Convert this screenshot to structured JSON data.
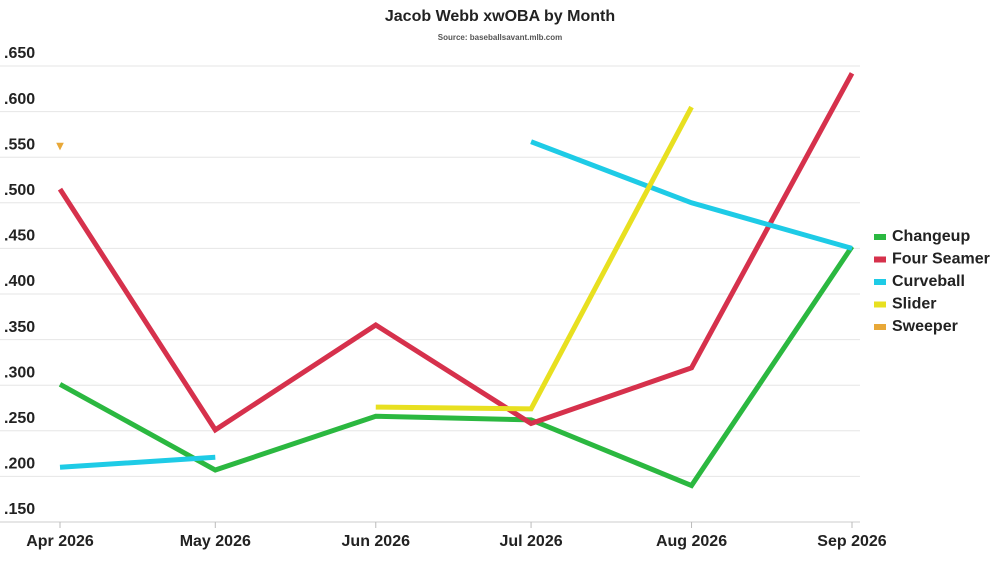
{
  "chart_data": {
    "type": "line",
    "title": "Jacob Webb xwOBA by Month",
    "subtitle": "Source: baseballsavant.mlb.com",
    "x": [
      "Apr 2026",
      "May 2026",
      "Jun 2026",
      "Jul 2026",
      "Aug 2026",
      "Sep 2026"
    ],
    "series": [
      {
        "name": "Changeup",
        "color": "#2bb840",
        "values": [
          0.301,
          0.207,
          0.266,
          0.262,
          0.19,
          0.452
        ]
      },
      {
        "name": "Four Seamer",
        "color": "#d6314c",
        "values": [
          0.515,
          0.251,
          0.366,
          0.258,
          0.319,
          0.642
        ]
      },
      {
        "name": "Curveball",
        "color": "#1ecbe6",
        "values": [
          0.21,
          0.221,
          null,
          0.567,
          0.5,
          0.45
        ]
      },
      {
        "name": "Slider",
        "color": "#e8e020",
        "values": [
          null,
          null,
          0.276,
          0.274,
          0.605,
          null
        ]
      },
      {
        "name": "Sweeper",
        "color": "#e8a838",
        "values": [
          0.562,
          null,
          null,
          null,
          null,
          null
        ]
      }
    ],
    "ylim": [
      0.15,
      0.65
    ],
    "yticks": [
      {
        "value": 0.15,
        "label": ".150"
      },
      {
        "value": 0.2,
        "label": ".200"
      },
      {
        "value": 0.25,
        "label": ".250"
      },
      {
        "value": 0.3,
        "label": ".300"
      },
      {
        "value": 0.35,
        "label": ".350"
      },
      {
        "value": 0.4,
        "label": ".400"
      },
      {
        "value": 0.45,
        "label": ".450"
      },
      {
        "value": 0.5,
        "label": ".500"
      },
      {
        "value": 0.55,
        "label": ".550"
      },
      {
        "value": 0.6,
        "label": ".600"
      },
      {
        "value": 0.65,
        "label": ".650"
      }
    ],
    "grid": true,
    "legend": "right"
  }
}
